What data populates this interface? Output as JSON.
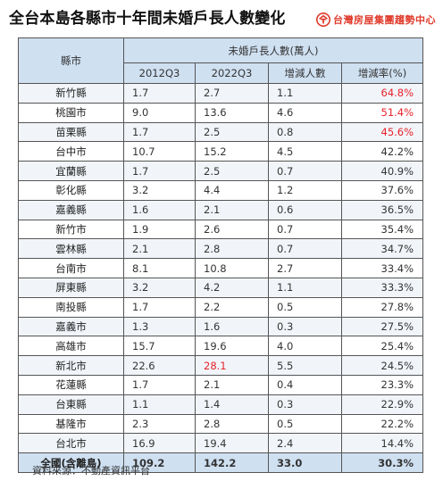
{
  "title": "全台本島各縣市十年間未婚戶長人數變化",
  "brand": {
    "name": "台灣房屋集團趨勢中心",
    "logo_icon": "house-t-logo-icon",
    "color": "#e03a2b"
  },
  "table": {
    "city_header": "縣市",
    "group_header": "未婚戶長人數(萬人)",
    "col_headers": [
      "2012Q3",
      "2022Q3",
      "增減人數",
      "增減率(%)"
    ],
    "rows": [
      {
        "city": "新竹縣",
        "y2012": "1.7",
        "y2022": "2.7",
        "change": "1.1",
        "rate": "64.8%",
        "rate_red": true,
        "y2022_red": false
      },
      {
        "city": "桃園市",
        "y2012": "9.0",
        "y2022": "13.6",
        "change": "4.6",
        "rate": "51.4%",
        "rate_red": true,
        "y2022_red": false
      },
      {
        "city": "苗栗縣",
        "y2012": "1.7",
        "y2022": "2.5",
        "change": "0.8",
        "rate": "45.6%",
        "rate_red": true,
        "y2022_red": false
      },
      {
        "city": "台中市",
        "y2012": "10.7",
        "y2022": "15.2",
        "change": "4.5",
        "rate": "42.2%",
        "rate_red": false,
        "y2022_red": false
      },
      {
        "city": "宜蘭縣",
        "y2012": "1.7",
        "y2022": "2.5",
        "change": "0.7",
        "rate": "40.9%",
        "rate_red": false,
        "y2022_red": false
      },
      {
        "city": "彰化縣",
        "y2012": "3.2",
        "y2022": "4.4",
        "change": "1.2",
        "rate": "37.6%",
        "rate_red": false,
        "y2022_red": false
      },
      {
        "city": "嘉義縣",
        "y2012": "1.6",
        "y2022": "2.1",
        "change": "0.6",
        "rate": "36.5%",
        "rate_red": false,
        "y2022_red": false
      },
      {
        "city": "新竹市",
        "y2012": "1.9",
        "y2022": "2.6",
        "change": "0.7",
        "rate": "35.4%",
        "rate_red": false,
        "y2022_red": false
      },
      {
        "city": "雲林縣",
        "y2012": "2.1",
        "y2022": "2.8",
        "change": "0.7",
        "rate": "34.7%",
        "rate_red": false,
        "y2022_red": false
      },
      {
        "city": "台南市",
        "y2012": "8.1",
        "y2022": "10.8",
        "change": "2.7",
        "rate": "33.4%",
        "rate_red": false,
        "y2022_red": false
      },
      {
        "city": "屏東縣",
        "y2012": "3.2",
        "y2022": "4.2",
        "change": "1.1",
        "rate": "33.3%",
        "rate_red": false,
        "y2022_red": false
      },
      {
        "city": "南投縣",
        "y2012": "1.7",
        "y2022": "2.2",
        "change": "0.5",
        "rate": "27.8%",
        "rate_red": false,
        "y2022_red": false
      },
      {
        "city": "嘉義市",
        "y2012": "1.3",
        "y2022": "1.6",
        "change": "0.3",
        "rate": "27.5%",
        "rate_red": false,
        "y2022_red": false
      },
      {
        "city": "高雄市",
        "y2012": "15.7",
        "y2022": "19.6",
        "change": "4.0",
        "rate": "25.4%",
        "rate_red": false,
        "y2022_red": false
      },
      {
        "city": "新北市",
        "y2012": "22.6",
        "y2022": "28.1",
        "change": "5.5",
        "rate": "24.5%",
        "rate_red": false,
        "y2022_red": true
      },
      {
        "city": "花蓮縣",
        "y2012": "1.7",
        "y2022": "2.1",
        "change": "0.4",
        "rate": "23.3%",
        "rate_red": false,
        "y2022_red": false
      },
      {
        "city": "台東縣",
        "y2012": "1.1",
        "y2022": "1.4",
        "change": "0.3",
        "rate": "22.9%",
        "rate_red": false,
        "y2022_red": false
      },
      {
        "city": "基隆市",
        "y2012": "2.3",
        "y2022": "2.8",
        "change": "0.5",
        "rate": "22.2%",
        "rate_red": false,
        "y2022_red": false
      },
      {
        "city": "台北市",
        "y2012": "16.9",
        "y2022": "19.4",
        "change": "2.4",
        "rate": "14.4%",
        "rate_red": false,
        "y2022_red": false
      }
    ],
    "total": {
      "city": "全國(含離島)",
      "y2012": "109.2",
      "y2022": "142.2",
      "change": "33.0",
      "rate": "30.3%"
    }
  },
  "source": "資料來源：不動產資訊平台",
  "colors": {
    "header_bg": "#cfe0f1",
    "highlight_red": "#e8222a",
    "stripe": "#f1f5fa"
  }
}
